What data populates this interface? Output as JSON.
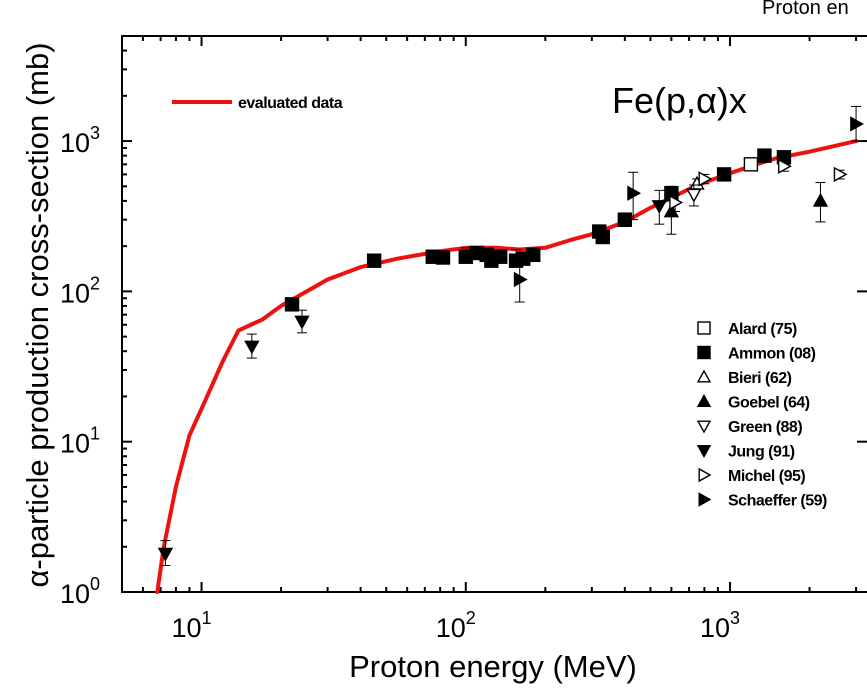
{
  "chart_data": {
    "type": "scatter",
    "top_title": "Proton en",
    "annotation": "Fe(p,α)x",
    "xlabel": "Proton energy (MeV)",
    "ylabel": "α-particle production cross-section (mb)",
    "x_scale": "log",
    "y_scale": "log",
    "xlim": [
      5,
      3300
    ],
    "ylim": [
      1,
      5000
    ],
    "x_ticks": [
      {
        "base": "10",
        "exp": "1",
        "value": 10
      },
      {
        "base": "10",
        "exp": "2",
        "value": 100
      },
      {
        "base": "10",
        "exp": "3",
        "value": 1000
      }
    ],
    "y_ticks": [
      {
        "base": "10",
        "exp": "0",
        "value": 1
      },
      {
        "base": "10",
        "exp": "1",
        "value": 10
      },
      {
        "base": "10",
        "exp": "2",
        "value": 100
      },
      {
        "base": "10",
        "exp": "3",
        "value": 1000
      }
    ],
    "grid": false,
    "legend_position": "bottom-right",
    "curve": {
      "name": "evaluated data",
      "color": "#ee1111",
      "x": [
        6.8,
        7.2,
        8,
        9,
        10.5,
        12,
        13.8,
        17,
        20,
        25,
        30,
        40,
        55,
        80,
        100,
        130,
        160,
        200,
        250,
        300,
        400,
        500,
        600,
        700,
        800,
        1000,
        1200,
        1500,
        2000,
        3000
      ],
      "y": [
        1,
        2,
        5,
        11,
        20,
        34,
        55,
        65,
        80,
        100,
        120,
        145,
        165,
        185,
        195,
        195,
        190,
        195,
        220,
        240,
        290,
        360,
        420,
        480,
        530,
        610,
        680,
        770,
        850,
        1000
      ]
    },
    "series": [
      {
        "name": "Alard (75)",
        "marker": "square-open",
        "points": [
          {
            "x": 1200,
            "y": 700,
            "lo": 640,
            "hi": 760
          }
        ]
      },
      {
        "name": "Ammon (08)",
        "marker": "square-filled",
        "points": [
          {
            "x": 22,
            "y": 82,
            "lo": 76,
            "hi": 88
          },
          {
            "x": 45,
            "y": 160,
            "lo": 150,
            "hi": 170
          },
          {
            "x": 75,
            "y": 170,
            "lo": 155,
            "hi": 185
          },
          {
            "x": 82,
            "y": 168,
            "lo": 155,
            "hi": 182
          },
          {
            "x": 100,
            "y": 170,
            "lo": 155,
            "hi": 195
          },
          {
            "x": 110,
            "y": 180,
            "lo": 165,
            "hi": 195
          },
          {
            "x": 120,
            "y": 175,
            "lo": 160,
            "hi": 190
          },
          {
            "x": 125,
            "y": 160,
            "lo": 148,
            "hi": 172
          },
          {
            "x": 135,
            "y": 170,
            "lo": 155,
            "hi": 185
          },
          {
            "x": 155,
            "y": 160,
            "lo": 145,
            "hi": 190
          },
          {
            "x": 165,
            "y": 165,
            "lo": 150,
            "hi": 180
          },
          {
            "x": 180,
            "y": 175,
            "lo": 160,
            "hi": 190
          },
          {
            "x": 320,
            "y": 250,
            "lo": 230,
            "hi": 270
          },
          {
            "x": 330,
            "y": 230,
            "lo": 210,
            "hi": 250
          },
          {
            "x": 400,
            "y": 300,
            "lo": 270,
            "hi": 330
          },
          {
            "x": 600,
            "y": 450,
            "lo": 400,
            "hi": 500
          },
          {
            "x": 950,
            "y": 600,
            "lo": 560,
            "hi": 640
          },
          {
            "x": 1350,
            "y": 800,
            "lo": 750,
            "hi": 850
          },
          {
            "x": 1600,
            "y": 780,
            "lo": 730,
            "hi": 830
          }
        ]
      },
      {
        "name": "Bieri (62)",
        "marker": "triangle-up-open",
        "points": [
          {
            "x": 750,
            "y": 520,
            "lo": 480,
            "hi": 560
          }
        ]
      },
      {
        "name": "Goebel (64)",
        "marker": "triangle-up-filled",
        "points": [
          {
            "x": 600,
            "y": 340,
            "lo": 240,
            "hi": 440
          },
          {
            "x": 2200,
            "y": 400,
            "lo": 290,
            "hi": 530
          }
        ]
      },
      {
        "name": "Green (88)",
        "marker": "triangle-down-open",
        "points": [
          {
            "x": 730,
            "y": 440,
            "lo": 370,
            "hi": 510
          }
        ]
      },
      {
        "name": "Jung (91)",
        "marker": "triangle-down-filled",
        "points": [
          {
            "x": 7.3,
            "y": 1.8,
            "lo": 1.5,
            "hi": 2.2
          },
          {
            "x": 15.5,
            "y": 43,
            "lo": 36,
            "hi": 52
          },
          {
            "x": 24,
            "y": 63,
            "lo": 53,
            "hi": 75
          },
          {
            "x": 540,
            "y": 370,
            "lo": 280,
            "hi": 470
          }
        ]
      },
      {
        "name": "Michel (95)",
        "marker": "triangle-right-open",
        "points": [
          {
            "x": 620,
            "y": 390,
            "lo": 340,
            "hi": 440
          },
          {
            "x": 800,
            "y": 560,
            "lo": 520,
            "hi": 600
          },
          {
            "x": 1600,
            "y": 680,
            "lo": 630,
            "hi": 730
          },
          {
            "x": 2600,
            "y": 600,
            "lo": 560,
            "hi": 640
          }
        ]
      },
      {
        "name": "Schaeffer (59)",
        "marker": "triangle-right-filled",
        "points": [
          {
            "x": 160,
            "y": 120,
            "lo": 85,
            "hi": 155
          },
          {
            "x": 430,
            "y": 450,
            "lo": 300,
            "hi": 620
          },
          {
            "x": 3000,
            "y": 1300,
            "lo": 1000,
            "hi": 1700
          }
        ]
      }
    ]
  }
}
